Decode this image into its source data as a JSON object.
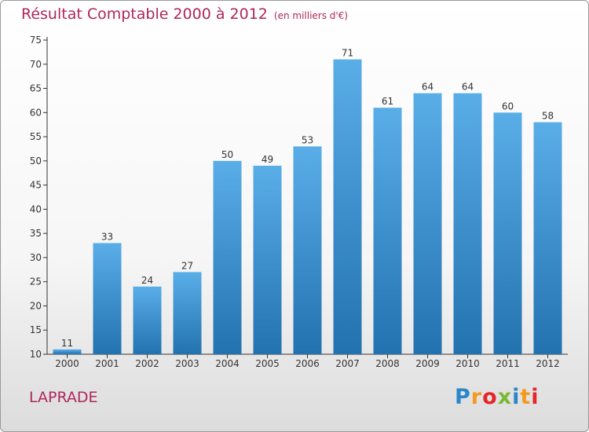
{
  "title": "Résultat Comptable 2000 à 2012",
  "subtitle": "(en milliers d'€)",
  "place": "LAPRADE",
  "logo": {
    "text": "Proxiti",
    "letters": [
      {
        "ch": "P",
        "color": "#2a86c8"
      },
      {
        "ch": "r",
        "color": "#f39a1e"
      },
      {
        "ch": "o",
        "color": "#e4262b"
      },
      {
        "ch": "x",
        "color": "#7ab934"
      },
      {
        "ch": "i",
        "color": "#2a86c8"
      },
      {
        "ch": "t",
        "color": "#f39a1e"
      },
      {
        "ch": "i",
        "color": "#e4262b"
      }
    ]
  },
  "colors": {
    "title": "#b0265a",
    "bar_light": "#5aaee8",
    "bar_dark": "#2272b0",
    "axis": "#333333"
  },
  "chart_data": {
    "type": "bar",
    "categories": [
      "2000",
      "2001",
      "2002",
      "2003",
      "2004",
      "2005",
      "2006",
      "2007",
      "2008",
      "2009",
      "2010",
      "2011",
      "2012"
    ],
    "values": [
      11,
      33,
      24,
      27,
      50,
      49,
      53,
      71,
      61,
      64,
      64,
      60,
      58
    ],
    "ylim": [
      10,
      75
    ],
    "yticks": [
      10,
      15,
      20,
      25,
      30,
      35,
      40,
      45,
      50,
      55,
      60,
      65,
      70,
      75
    ],
    "grid": false,
    "legend": "none",
    "xlabel": "",
    "ylabel": ""
  }
}
